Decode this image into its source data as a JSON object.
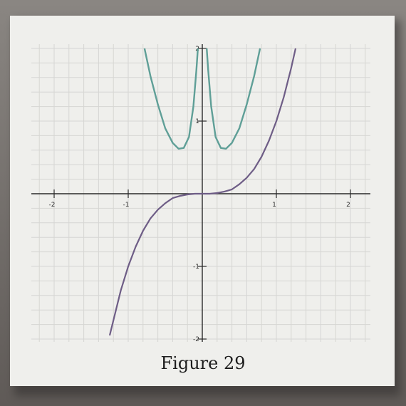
{
  "caption": "Figure 29",
  "chart_data": {
    "type": "line",
    "title": "",
    "xlabel": "",
    "ylabel": "",
    "xlim": [
      -2.2,
      2.3
    ],
    "ylim": [
      -2,
      2
    ],
    "grid": true,
    "legend": "none",
    "x_ticks": [
      {
        "value": -2,
        "label": "-2"
      },
      {
        "value": -1,
        "label": "-1"
      },
      {
        "value": 1,
        "label": "1"
      },
      {
        "value": 2,
        "label": "2"
      }
    ],
    "y_ticks": [
      {
        "value": 2,
        "label": "2"
      },
      {
        "value": 1,
        "label": "1"
      },
      {
        "value": -1,
        "label": "-1"
      },
      {
        "value": -2,
        "label": "-2"
      }
    ],
    "series": [
      {
        "color": "#5f9f97",
        "points_left": [
          [
            -0.78,
            2.0
          ],
          [
            -0.7,
            1.62
          ],
          [
            -0.6,
            1.23
          ],
          [
            -0.5,
            0.9
          ],
          [
            -0.4,
            0.7
          ],
          [
            -0.32,
            0.62
          ],
          [
            -0.25,
            0.63
          ],
          [
            -0.18,
            0.78
          ],
          [
            -0.12,
            1.2
          ],
          [
            -0.08,
            1.7
          ],
          [
            -0.06,
            2.0
          ]
        ],
        "points_right": [
          [
            0.06,
            2.0
          ],
          [
            0.08,
            1.7
          ],
          [
            0.12,
            1.2
          ],
          [
            0.18,
            0.78
          ],
          [
            0.25,
            0.63
          ],
          [
            0.32,
            0.62
          ],
          [
            0.4,
            0.7
          ],
          [
            0.5,
            0.9
          ],
          [
            0.6,
            1.23
          ],
          [
            0.7,
            1.62
          ],
          [
            0.78,
            2.0
          ]
        ]
      },
      {
        "color": "#6e5d86",
        "points": [
          [
            -1.25,
            -1.95
          ],
          [
            -1.1,
            -1.33
          ],
          [
            -1.0,
            -1.0
          ],
          [
            -0.9,
            -0.73
          ],
          [
            -0.8,
            -0.51
          ],
          [
            -0.7,
            -0.34
          ],
          [
            -0.6,
            -0.22
          ],
          [
            -0.5,
            -0.13
          ],
          [
            -0.4,
            -0.06
          ],
          [
            -0.3,
            -0.03
          ],
          [
            -0.2,
            -0.01
          ],
          [
            -0.1,
            0.0
          ],
          [
            0.0,
            0.0
          ],
          [
            0.1,
            0.0
          ],
          [
            0.2,
            0.01
          ],
          [
            0.3,
            0.03
          ],
          [
            0.4,
            0.06
          ],
          [
            0.5,
            0.13
          ],
          [
            0.6,
            0.22
          ],
          [
            0.7,
            0.34
          ],
          [
            0.8,
            0.51
          ],
          [
            0.9,
            0.73
          ],
          [
            1.0,
            1.0
          ],
          [
            1.1,
            1.33
          ],
          [
            1.2,
            1.73
          ],
          [
            1.26,
            2.0
          ]
        ]
      }
    ]
  }
}
